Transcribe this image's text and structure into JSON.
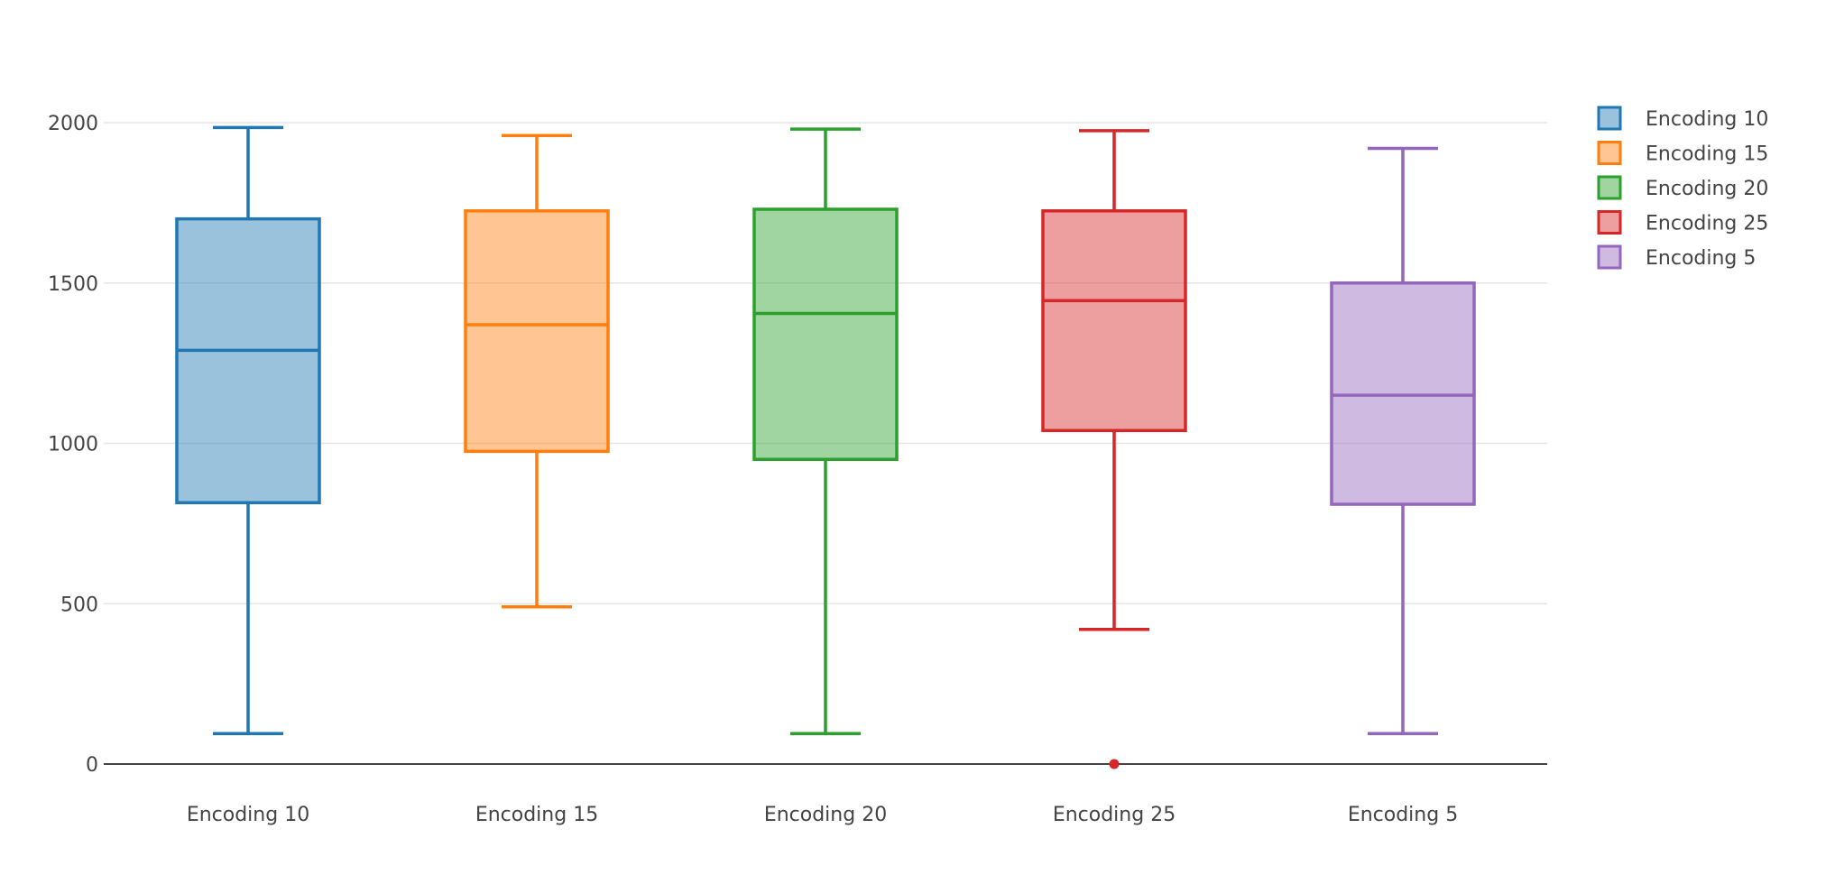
{
  "chart_data": {
    "type": "box",
    "categories": [
      "Encoding  10",
      "Encoding  15",
      "Encoding  20",
      "Encoding  25",
      "Encoding  5"
    ],
    "series": [
      {
        "name": "Encoding  10",
        "color": "#1f77b4",
        "fill": "rgba(31,119,180,0.45)",
        "min": 95,
        "q1": 815,
        "median": 1290,
        "q3": 1700,
        "max": 1985,
        "outliers": []
      },
      {
        "name": "Encoding  15",
        "color": "#ff7f0e",
        "fill": "rgba(255,127,14,0.45)",
        "min": 490,
        "q1": 975,
        "median": 1370,
        "q3": 1725,
        "max": 1960,
        "outliers": []
      },
      {
        "name": "Encoding  20",
        "color": "#2ca02c",
        "fill": "rgba(44,160,44,0.45)",
        "min": 95,
        "q1": 950,
        "median": 1405,
        "q3": 1730,
        "max": 1980,
        "outliers": []
      },
      {
        "name": "Encoding  25",
        "color": "#d62728",
        "fill": "rgba(214,39,40,0.45)",
        "min": 420,
        "q1": 1040,
        "median": 1445,
        "q3": 1725,
        "max": 1975,
        "outliers": [
          0
        ]
      },
      {
        "name": "Encoding  5",
        "color": "#9467bd",
        "fill": "rgba(148,103,189,0.45)",
        "min": 95,
        "q1": 810,
        "median": 1150,
        "q3": 1500,
        "max": 1920,
        "outliers": []
      }
    ],
    "y_ticks": [
      0,
      500,
      1000,
      1500,
      2000
    ],
    "ylim": [
      0,
      2000
    ],
    "grid": true,
    "legend_placement": "top-right"
  }
}
